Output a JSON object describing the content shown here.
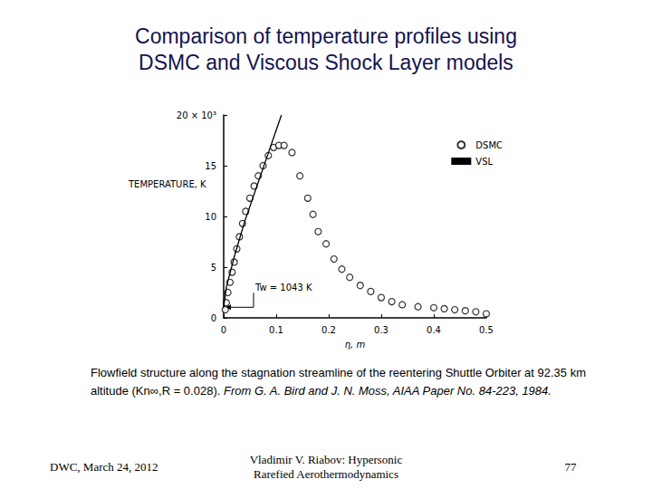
{
  "slide": {
    "title_lines": [
      "Comparison of temperature profiles using",
      "DSMC and Viscous Shock Layer models"
    ],
    "caption": "Flowfield structure along the stagnation streamline of the reentering Shuttle Orbiter at 92.35 km altitude (Kn∞,R = 0.028).",
    "caption_source": "From G. A. Bird and J. N. Moss, AIAA Paper No. 84-223, 1984.",
    "footer_left": "DWC, March 24, 2012",
    "footer_center": [
      "Vladimir V. Riabov: Hypersonic",
      "Rarefied Aerothermodynamics"
    ],
    "footer_right": "77"
  },
  "chart_data": {
    "type": "scatter",
    "x_label": "η, m",
    "y_label": "TEMPERATURE, K",
    "xlim": [
      0,
      0.5
    ],
    "xticks": [
      0,
      0.1,
      0.2,
      0.3,
      0.4,
      0.5
    ],
    "ylim": [
      0,
      20
    ],
    "yticks": [
      0,
      5,
      10,
      15,
      {
        "value": 20,
        "label": "20 × 10³"
      }
    ],
    "grid": false,
    "legend": "top-right",
    "annotations": [
      {
        "text": "Tw = 1043 K",
        "x": 0,
        "y": 1.043
      }
    ],
    "series": [
      {
        "name": "DSMC",
        "type": "scatter",
        "marker": "circle",
        "color": "#000000",
        "x": [
          0.003,
          0.005,
          0.008,
          0.012,
          0.016,
          0.02,
          0.025,
          0.03,
          0.036,
          0.042,
          0.05,
          0.058,
          0.066,
          0.075,
          0.085,
          0.095,
          0.105,
          0.115,
          0.13,
          0.145,
          0.16,
          0.17,
          0.18,
          0.195,
          0.21,
          0.225,
          0.24,
          0.26,
          0.28,
          0.3,
          0.32,
          0.34,
          0.37,
          0.4,
          0.42,
          0.44,
          0.46,
          0.48,
          0.5
        ],
        "values": [
          0.8,
          1.5,
          2.5,
          3.5,
          4.5,
          5.5,
          6.8,
          8,
          9.3,
          10.5,
          11.8,
          13,
          14,
          15,
          16,
          16.8,
          17,
          17,
          16.3,
          14,
          11.8,
          10.2,
          8.5,
          7.3,
          5.8,
          4.8,
          4,
          3.2,
          2.6,
          2,
          1.6,
          1.3,
          1.1,
          1,
          0.9,
          0.8,
          0.7,
          0.6,
          0.4
        ]
      },
      {
        "name": "VSL",
        "type": "line",
        "line_style": "solid",
        "color": "#000000",
        "x": [
          0,
          0.005,
          0.02,
          0.04,
          0.06,
          0.08,
          0.1,
          0.11
        ],
        "values": [
          1.043,
          3,
          6,
          9.5,
          12.5,
          15.5,
          18.5,
          20
        ]
      }
    ]
  }
}
